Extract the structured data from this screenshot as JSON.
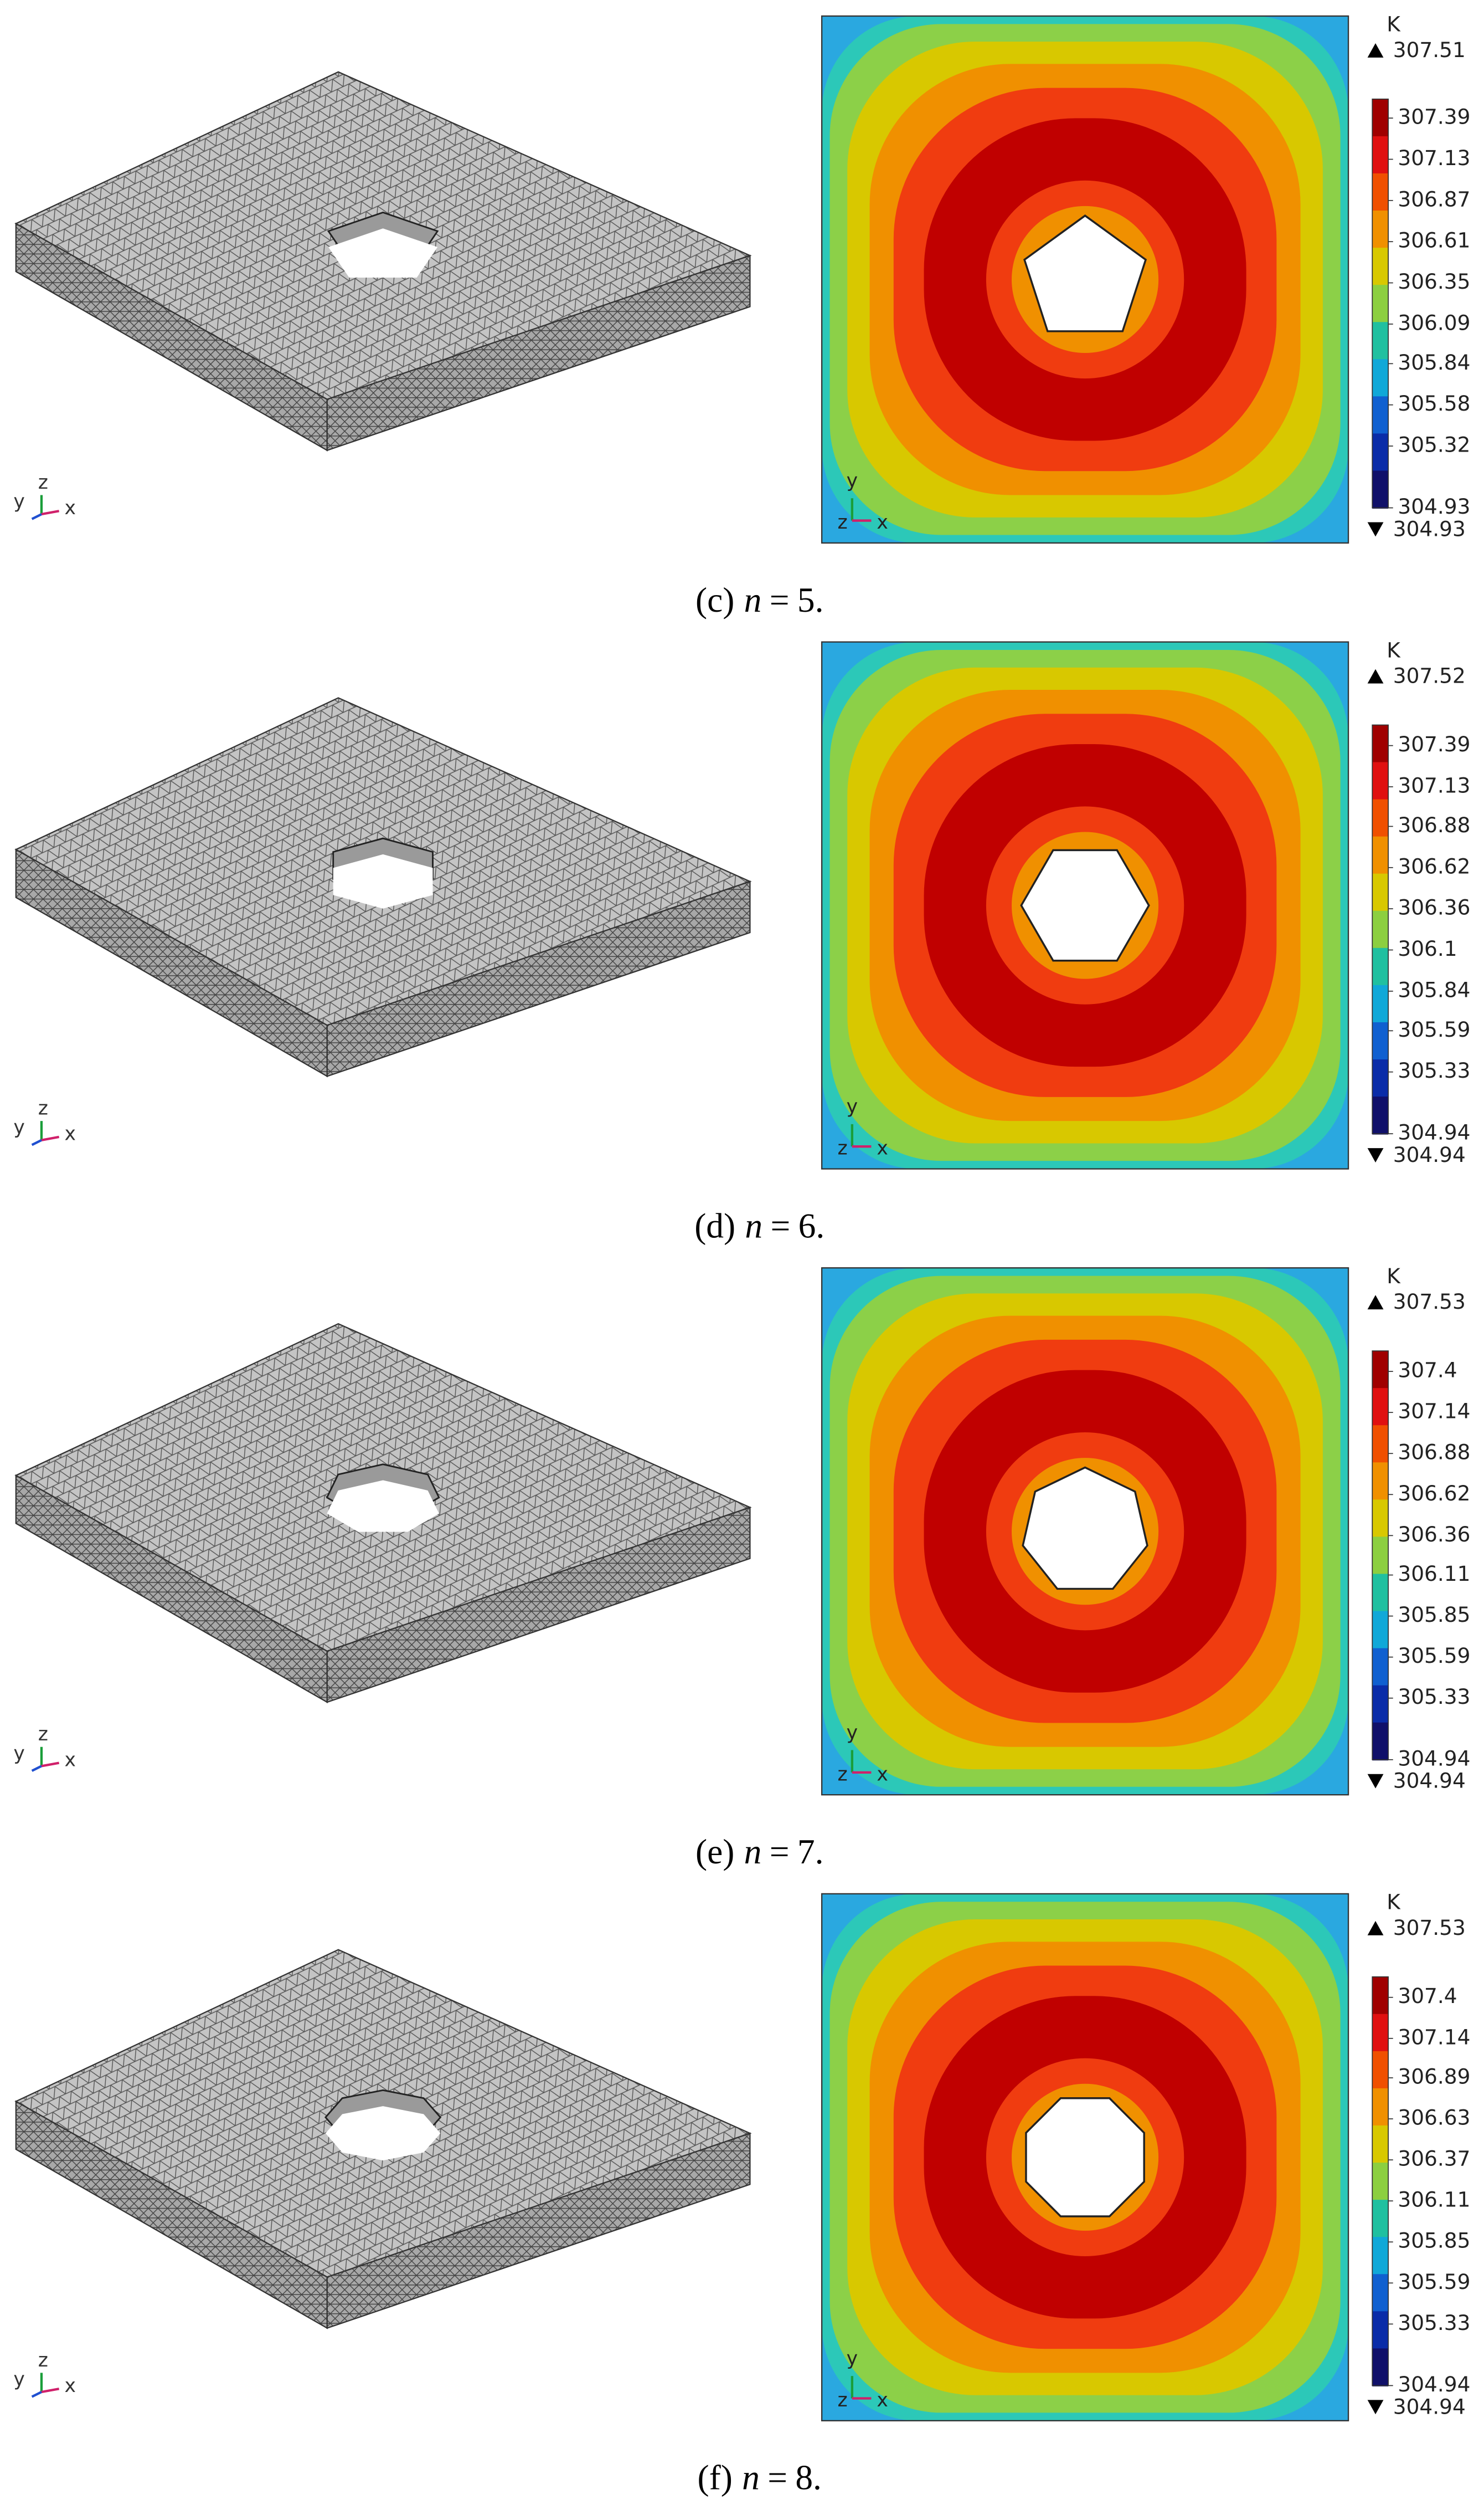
{
  "panels": [
    {
      "caption": {
        "label": "(c)",
        "variable": "n",
        "sign": "=",
        "value": 5,
        "period": "."
      },
      "mesh_axes": [
        "y",
        "z",
        "x"
      ],
      "plot_axes": [
        "y",
        "z",
        "x"
      ],
      "unit": "K",
      "max": 307.51,
      "min": 304.93,
      "ticks": [
        307.39,
        307.13,
        306.87,
        306.61,
        306.35,
        306.09,
        305.84,
        305.58,
        305.32,
        304.93
      ]
    },
    {
      "caption": {
        "label": "(d)",
        "variable": "n",
        "sign": "=",
        "value": 6,
        "period": "."
      },
      "mesh_axes": [
        "y",
        "z",
        "x"
      ],
      "plot_axes": [
        "y",
        "z",
        "x"
      ],
      "unit": "K",
      "max": 307.52,
      "min": 304.94,
      "ticks": [
        307.39,
        307.13,
        306.88,
        306.62,
        306.36,
        306.1,
        305.84,
        305.59,
        305.33,
        304.94
      ]
    },
    {
      "caption": {
        "label": "(e)",
        "variable": "n",
        "sign": "=",
        "value": 7,
        "period": "."
      },
      "mesh_axes": [
        "y",
        "z",
        "x"
      ],
      "plot_axes": [
        "y",
        "z",
        "x"
      ],
      "unit": "K",
      "max": 307.53,
      "min": 304.94,
      "ticks": [
        307.4,
        307.14,
        306.88,
        306.62,
        306.36,
        306.11,
        305.85,
        305.59,
        305.33,
        304.94
      ]
    },
    {
      "caption": {
        "label": "(f)",
        "variable": "n",
        "sign": "=",
        "value": 8,
        "period": "."
      },
      "mesh_axes": [
        "y",
        "z",
        "x"
      ],
      "plot_axes": [
        "y",
        "z",
        "x"
      ],
      "unit": "K",
      "max": 307.53,
      "min": 304.94,
      "ticks": [
        307.4,
        307.14,
        306.89,
        306.63,
        306.37,
        306.11,
        305.85,
        305.59,
        305.33,
        304.94
      ]
    }
  ]
}
